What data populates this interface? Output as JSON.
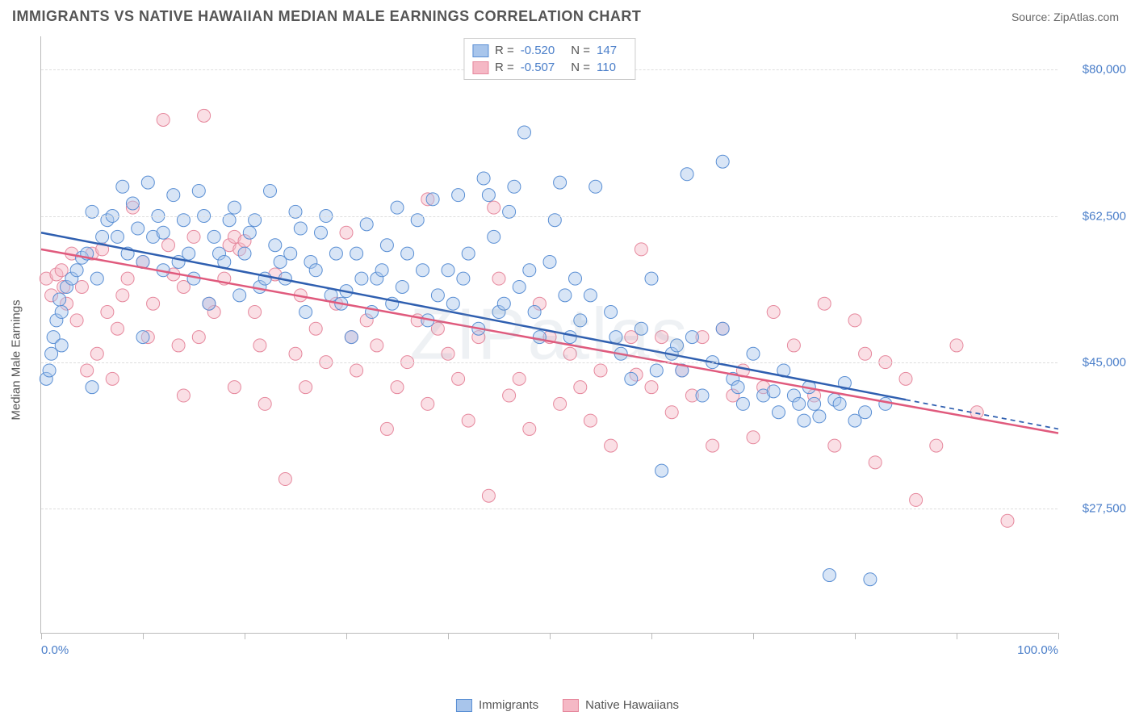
{
  "title": "IMMIGRANTS VS NATIVE HAWAIIAN MEDIAN MALE EARNINGS CORRELATION CHART",
  "source_label": "Source: ZipAtlas.com",
  "watermark": "ZIPatlas",
  "y_axis_label": "Median Male Earnings",
  "chart": {
    "type": "scatter",
    "background_color": "#ffffff",
    "grid_color": "#dddddd",
    "axis_color": "#bbbbbb",
    "text_color": "#555555",
    "tick_label_color": "#4a7ec9",
    "title_fontsize": 18,
    "label_fontsize": 15,
    "xlim": [
      0,
      100
    ],
    "ylim": [
      12500,
      84000
    ],
    "xticks": [
      0,
      10,
      20,
      30,
      40,
      50,
      60,
      70,
      80,
      90,
      100
    ],
    "xtick_labels_visible": {
      "0": "0.0%",
      "100": "100.0%"
    },
    "yticks": [
      27500,
      45000,
      62500,
      80000
    ],
    "ytick_labels": [
      "$27,500",
      "$45,000",
      "$62,500",
      "$80,000"
    ],
    "marker_radius": 8,
    "marker_opacity": 0.45,
    "line_width": 2.5,
    "series": [
      {
        "name": "Immigrants",
        "fill_color": "#a8c5eb",
        "stroke_color": "#5a8fd4",
        "line_color": "#2f5fb0",
        "R": "-0.520",
        "N": "147",
        "trend": {
          "x1": 0,
          "y1": 60500,
          "x2_solid": 85,
          "y2_solid": 40500,
          "x2_dash": 100,
          "y2_dash": 37000
        },
        "points": [
          [
            0.5,
            43000
          ],
          [
            0.8,
            44000
          ],
          [
            1,
            46000
          ],
          [
            1.2,
            48000
          ],
          [
            1.5,
            50000
          ],
          [
            1.8,
            52500
          ],
          [
            2,
            51000
          ],
          [
            2,
            47000
          ],
          [
            2.5,
            54000
          ],
          [
            3,
            55000
          ],
          [
            3.5,
            56000
          ],
          [
            4,
            57500
          ],
          [
            4.5,
            58000
          ],
          [
            5,
            42000
          ],
          [
            5,
            63000
          ],
          [
            5.5,
            55000
          ],
          [
            6,
            60000
          ],
          [
            6.5,
            62000
          ],
          [
            7,
            62500
          ],
          [
            7.5,
            60000
          ],
          [
            8,
            66000
          ],
          [
            8.5,
            58000
          ],
          [
            9,
            64000
          ],
          [
            9.5,
            61000
          ],
          [
            10,
            57000
          ],
          [
            10,
            48000
          ],
          [
            10.5,
            66500
          ],
          [
            11,
            60000
          ],
          [
            11.5,
            62500
          ],
          [
            12,
            60500
          ],
          [
            12,
            56000
          ],
          [
            13,
            65000
          ],
          [
            13.5,
            57000
          ],
          [
            14,
            62000
          ],
          [
            14.5,
            58000
          ],
          [
            15,
            55000
          ],
          [
            15.5,
            65500
          ],
          [
            16,
            62500
          ],
          [
            16.5,
            52000
          ],
          [
            17,
            60000
          ],
          [
            17.5,
            58000
          ],
          [
            18,
            57000
          ],
          [
            18.5,
            62000
          ],
          [
            19,
            63500
          ],
          [
            19.5,
            53000
          ],
          [
            20,
            58000
          ],
          [
            20.5,
            60500
          ],
          [
            21,
            62000
          ],
          [
            21.5,
            54000
          ],
          [
            22,
            55000
          ],
          [
            22.5,
            65500
          ],
          [
            23,
            59000
          ],
          [
            23.5,
            57000
          ],
          [
            24,
            55000
          ],
          [
            24.5,
            58000
          ],
          [
            25,
            63000
          ],
          [
            25.5,
            61000
          ],
          [
            26,
            51000
          ],
          [
            26.5,
            57000
          ],
          [
            27,
            56000
          ],
          [
            27.5,
            60500
          ],
          [
            28,
            62500
          ],
          [
            28.5,
            53000
          ],
          [
            29,
            58000
          ],
          [
            29.5,
            52000
          ],
          [
            30,
            53500
          ],
          [
            30.5,
            48000
          ],
          [
            31,
            58000
          ],
          [
            31.5,
            55000
          ],
          [
            32,
            61500
          ],
          [
            32.5,
            51000
          ],
          [
            33,
            55000
          ],
          [
            33.5,
            56000
          ],
          [
            34,
            59000
          ],
          [
            34.5,
            52000
          ],
          [
            35,
            63500
          ],
          [
            35.5,
            54000
          ],
          [
            36,
            58000
          ],
          [
            37,
            62000
          ],
          [
            37.5,
            56000
          ],
          [
            38,
            50000
          ],
          [
            38.5,
            64500
          ],
          [
            39,
            53000
          ],
          [
            40,
            56000
          ],
          [
            40.5,
            52000
          ],
          [
            41,
            65000
          ],
          [
            41.5,
            55000
          ],
          [
            42,
            58000
          ],
          [
            43,
            49000
          ],
          [
            43.5,
            67000
          ],
          [
            44,
            65000
          ],
          [
            44.5,
            60000
          ],
          [
            45,
            51000
          ],
          [
            45.5,
            52000
          ],
          [
            46,
            63000
          ],
          [
            46.5,
            66000
          ],
          [
            47,
            54000
          ],
          [
            47.5,
            72500
          ],
          [
            48,
            56000
          ],
          [
            48.5,
            51000
          ],
          [
            49,
            48000
          ],
          [
            50,
            57000
          ],
          [
            50.5,
            62000
          ],
          [
            51,
            66500
          ],
          [
            51.5,
            53000
          ],
          [
            52,
            48000
          ],
          [
            52.5,
            55000
          ],
          [
            53,
            50000
          ],
          [
            54,
            53000
          ],
          [
            54.5,
            66000
          ],
          [
            56,
            51000
          ],
          [
            56.5,
            48000
          ],
          [
            57,
            46000
          ],
          [
            58,
            43000
          ],
          [
            59,
            49000
          ],
          [
            60,
            55000
          ],
          [
            60.5,
            44000
          ],
          [
            61,
            32000
          ],
          [
            62,
            46000
          ],
          [
            62.5,
            47000
          ],
          [
            63,
            44000
          ],
          [
            63.5,
            67500
          ],
          [
            64,
            48000
          ],
          [
            65,
            41000
          ],
          [
            66,
            45000
          ],
          [
            67,
            49000
          ],
          [
            67,
            69000
          ],
          [
            68,
            43000
          ],
          [
            68.5,
            42000
          ],
          [
            69,
            40000
          ],
          [
            70,
            46000
          ],
          [
            71,
            41000
          ],
          [
            72,
            41500
          ],
          [
            72.5,
            39000
          ],
          [
            73,
            44000
          ],
          [
            74,
            41000
          ],
          [
            74.5,
            40000
          ],
          [
            75,
            38000
          ],
          [
            75.5,
            42000
          ],
          [
            76,
            40000
          ],
          [
            76.5,
            38500
          ],
          [
            77.5,
            19500
          ],
          [
            78,
            40500
          ],
          [
            78.5,
            40000
          ],
          [
            79,
            42500
          ],
          [
            80,
            38000
          ],
          [
            81.5,
            19000
          ],
          [
            81,
            39000
          ],
          [
            83,
            40000
          ]
        ]
      },
      {
        "name": "Native Hawaiians",
        "fill_color": "#f5b8c5",
        "stroke_color": "#e6889d",
        "line_color": "#e05a7d",
        "R": "-0.507",
        "N": "110",
        "trend": {
          "x1": 0,
          "y1": 58500,
          "x2_solid": 100,
          "y2_solid": 36500,
          "x2_dash": 100,
          "y2_dash": 36500
        },
        "points": [
          [
            0.5,
            55000
          ],
          [
            1,
            53000
          ],
          [
            1.5,
            55500
          ],
          [
            2,
            56000
          ],
          [
            2.2,
            54000
          ],
          [
            2.5,
            52000
          ],
          [
            3,
            58000
          ],
          [
            3.5,
            50000
          ],
          [
            4,
            54000
          ],
          [
            4.5,
            44000
          ],
          [
            5,
            58000
          ],
          [
            5.5,
            46000
          ],
          [
            6,
            58500
          ],
          [
            6.5,
            51000
          ],
          [
            7,
            43000
          ],
          [
            7.5,
            49000
          ],
          [
            8,
            53000
          ],
          [
            8.5,
            55000
          ],
          [
            9,
            63500
          ],
          [
            10,
            57000
          ],
          [
            10.5,
            48000
          ],
          [
            11,
            52000
          ],
          [
            12,
            74000
          ],
          [
            12.5,
            59000
          ],
          [
            13,
            55500
          ],
          [
            13.5,
            47000
          ],
          [
            14,
            54000
          ],
          [
            14,
            41000
          ],
          [
            15,
            60000
          ],
          [
            15.5,
            48000
          ],
          [
            16,
            74500
          ],
          [
            16.5,
            52000
          ],
          [
            17,
            51000
          ],
          [
            18,
            55000
          ],
          [
            18.5,
            59000
          ],
          [
            19,
            60000
          ],
          [
            19,
            42000
          ],
          [
            19.5,
            58500
          ],
          [
            20,
            59500
          ],
          [
            21,
            51000
          ],
          [
            21.5,
            47000
          ],
          [
            22,
            40000
          ],
          [
            23,
            55500
          ],
          [
            24,
            31000
          ],
          [
            25,
            46000
          ],
          [
            25.5,
            53000
          ],
          [
            26,
            42000
          ],
          [
            27,
            49000
          ],
          [
            28,
            45000
          ],
          [
            29,
            52000
          ],
          [
            30,
            60500
          ],
          [
            30.5,
            48000
          ],
          [
            31,
            44000
          ],
          [
            32,
            50000
          ],
          [
            33,
            47000
          ],
          [
            34,
            37000
          ],
          [
            35,
            42000
          ],
          [
            36,
            45000
          ],
          [
            37,
            50000
          ],
          [
            38,
            40000
          ],
          [
            38,
            64500
          ],
          [
            39,
            49000
          ],
          [
            40,
            46000
          ],
          [
            41,
            43000
          ],
          [
            42,
            38000
          ],
          [
            43,
            48000
          ],
          [
            44,
            29000
          ],
          [
            44.5,
            63500
          ],
          [
            45,
            55000
          ],
          [
            46,
            41000
          ],
          [
            47,
            43000
          ],
          [
            48,
            37000
          ],
          [
            49,
            52000
          ],
          [
            50,
            48000
          ],
          [
            51,
            40000
          ],
          [
            52,
            46000
          ],
          [
            53,
            42000
          ],
          [
            54,
            38000
          ],
          [
            55,
            44000
          ],
          [
            56,
            35000
          ],
          [
            58,
            48000
          ],
          [
            58.5,
            43500
          ],
          [
            59,
            58500
          ],
          [
            60,
            42000
          ],
          [
            61,
            48000
          ],
          [
            62,
            39000
          ],
          [
            63,
            44000
          ],
          [
            64,
            41000
          ],
          [
            65,
            48000
          ],
          [
            66,
            35000
          ],
          [
            67,
            49000
          ],
          [
            68,
            41000
          ],
          [
            69,
            44000
          ],
          [
            70,
            36000
          ],
          [
            71,
            42000
          ],
          [
            72,
            51000
          ],
          [
            74,
            47000
          ],
          [
            76,
            41000
          ],
          [
            77,
            52000
          ],
          [
            78,
            35000
          ],
          [
            80,
            50000
          ],
          [
            81,
            46000
          ],
          [
            82,
            33000
          ],
          [
            83,
            45000
          ],
          [
            85,
            43000
          ],
          [
            86,
            28500
          ],
          [
            88,
            35000
          ],
          [
            90,
            47000
          ],
          [
            92,
            39000
          ],
          [
            95,
            26000
          ]
        ]
      }
    ],
    "legend_bottom": [
      "Immigrants",
      "Native Hawaiians"
    ]
  }
}
